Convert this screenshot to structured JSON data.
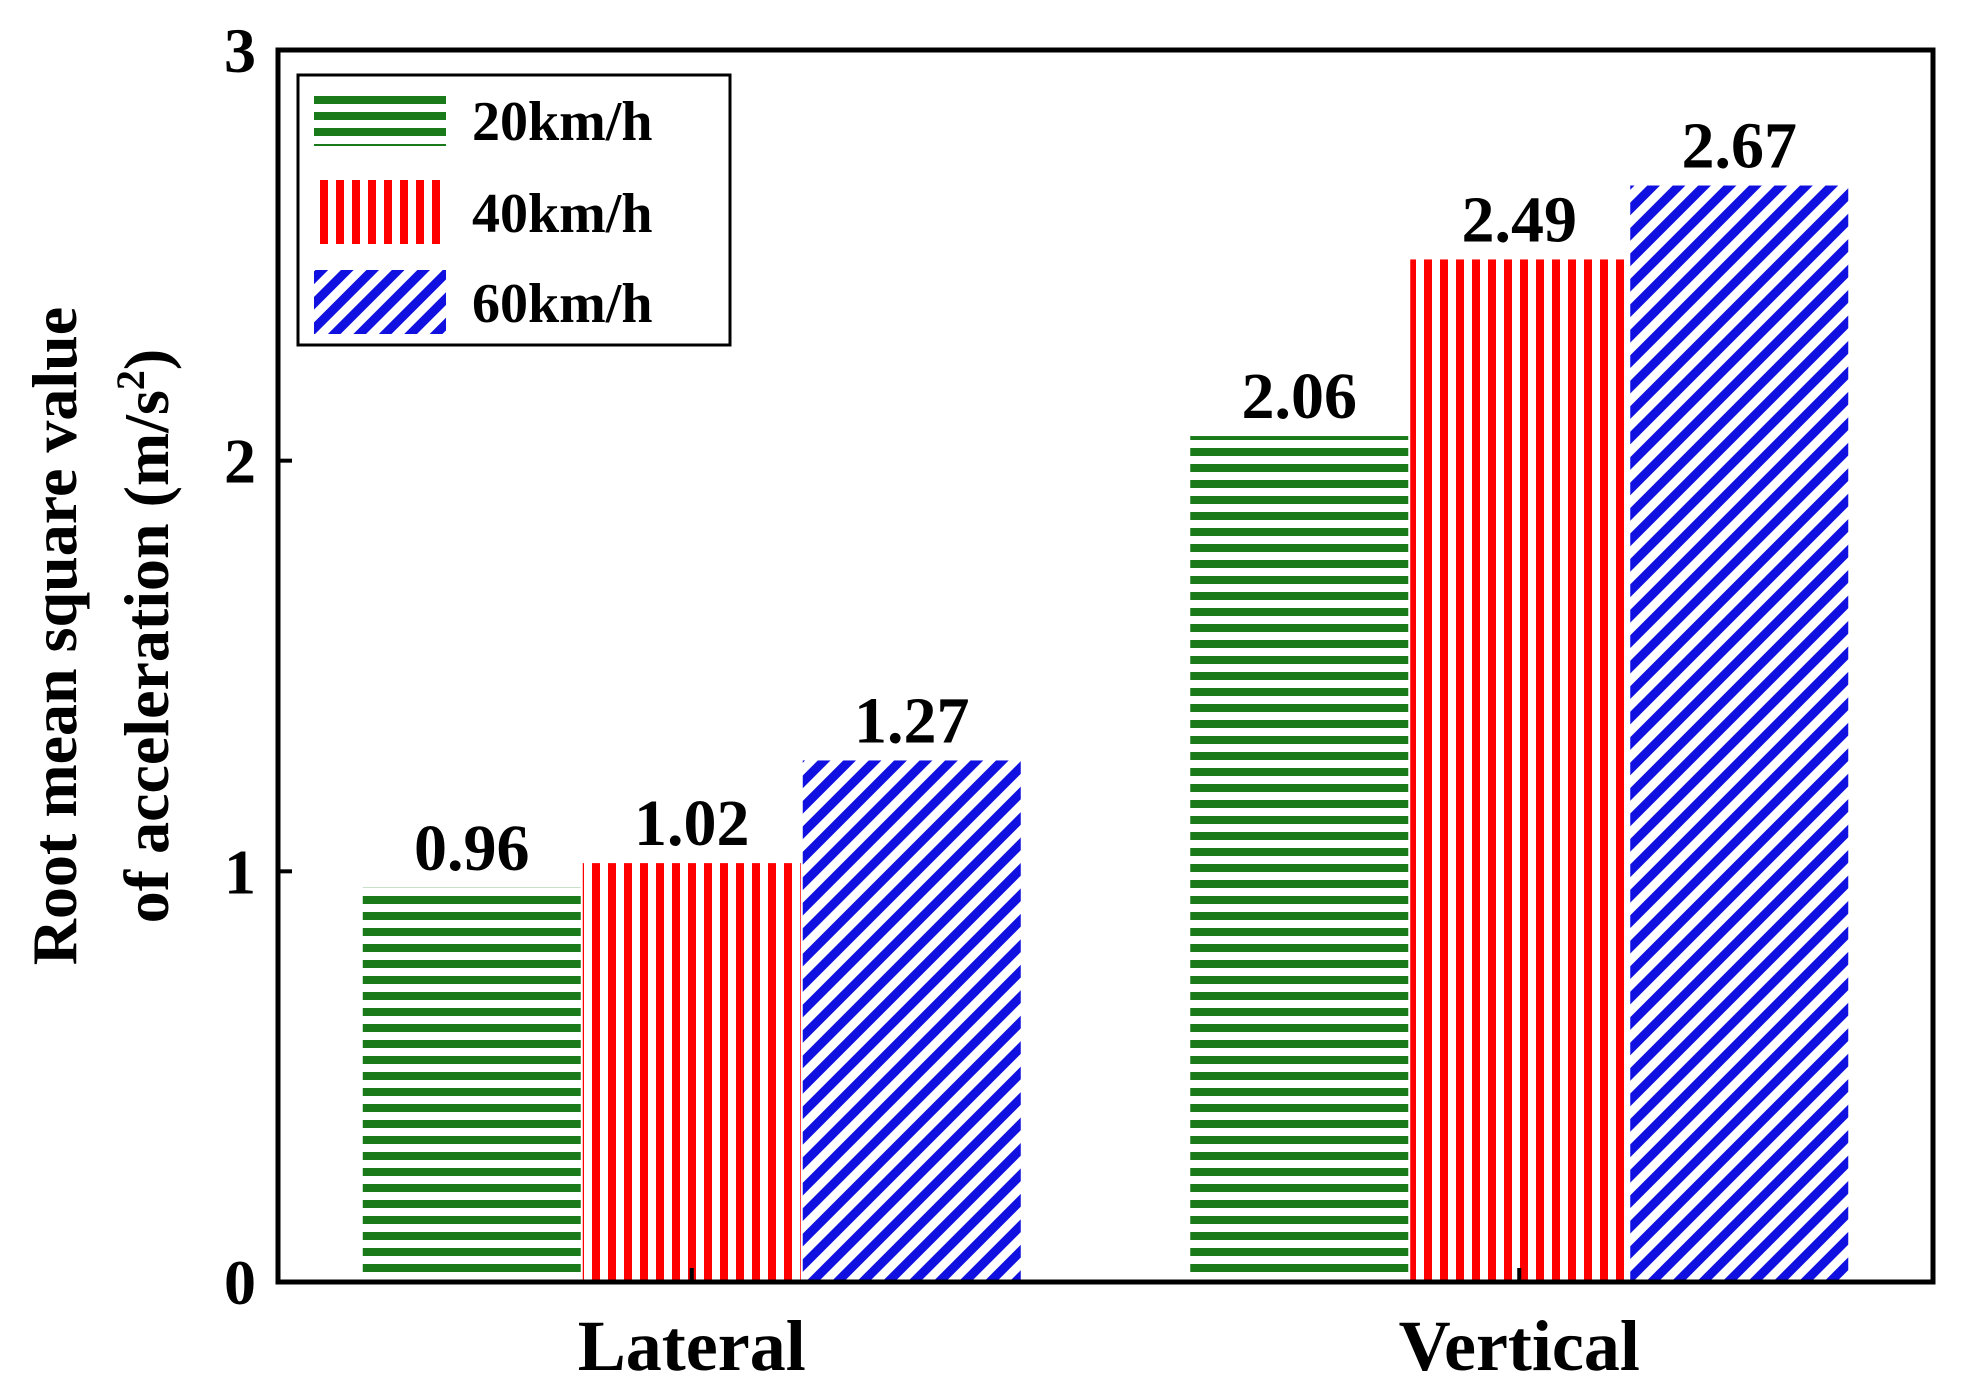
{
  "chart_data": {
    "type": "bar",
    "title": "",
    "xlabel": "",
    "ylabel_line1": "Root mean square value",
    "ylabel_line2_prefix": "of acceleration (m/s",
    "ylabel_superscript": "2",
    "ylabel_line2_suffix": ")",
    "categories": [
      "Lateral",
      "Vertical"
    ],
    "series": [
      {
        "name": "20km/h",
        "values": [
          0.96,
          2.06
        ],
        "labels": [
          "0.96",
          "2.06"
        ],
        "color": "#1a7a1a",
        "pattern": "horizontal"
      },
      {
        "name": "40km/h",
        "values": [
          1.02,
          2.49
        ],
        "labels": [
          "1.02",
          "2.49"
        ],
        "color": "#ff0000",
        "pattern": "vertical"
      },
      {
        "name": "60km/h",
        "values": [
          1.27,
          2.67
        ],
        "labels": [
          "1.27",
          "2.67"
        ],
        "color": "#1010e0",
        "pattern": "diagonal"
      }
    ],
    "ylim": [
      0,
      3
    ],
    "yticks": [
      0,
      1,
      2,
      3
    ],
    "ytick_labels": [
      "0",
      "1",
      "2",
      "3"
    ],
    "grid": false,
    "legend_position": "top-left"
  }
}
